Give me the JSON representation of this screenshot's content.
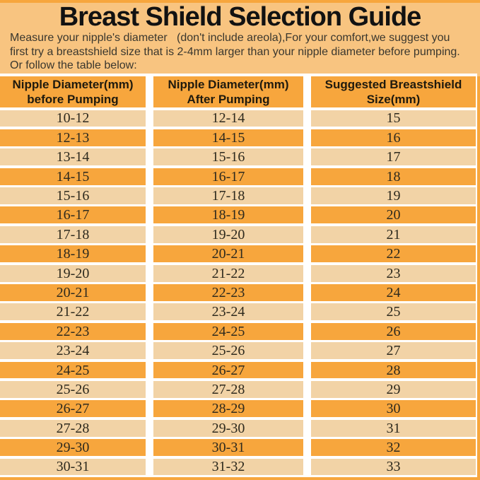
{
  "page": {
    "title": "Breast Shield Selection Guide",
    "intro_lines": [
      "Measure your nipple's diameter   (don't include areola),For your comfort,we suggest you",
      "first try a breastshield size that is 2-4mm larger than your nipple diameter before pumping.",
      "Or follow the table below:"
    ]
  },
  "colors": {
    "background": "#f8c480",
    "accent_orange": "#f7a63d",
    "light_row": "#f2d3a6",
    "gap_white": "#ffffff"
  },
  "table": {
    "headers": [
      {
        "line1": "Nipple Diameter(mm)",
        "line2": "before Pumping"
      },
      {
        "line1": "Nipple Diameter(mm)",
        "line2": "After Pumping"
      },
      {
        "line1": "Suggested Breastshield",
        "line2": "Size(mm)"
      }
    ],
    "rows": [
      {
        "before": "10-12",
        "after": "12-14",
        "size": "15"
      },
      {
        "before": "12-13",
        "after": "14-15",
        "size": "16"
      },
      {
        "before": "13-14",
        "after": "15-16",
        "size": "17"
      },
      {
        "before": "14-15",
        "after": "16-17",
        "size": "18"
      },
      {
        "before": "15-16",
        "after": "17-18",
        "size": "19"
      },
      {
        "before": "16-17",
        "after": "18-19",
        "size": "20"
      },
      {
        "before": "17-18",
        "after": "19-20",
        "size": "21"
      },
      {
        "before": "18-19",
        "after": "20-21",
        "size": "22"
      },
      {
        "before": "19-20",
        "after": "21-22",
        "size": "23"
      },
      {
        "before": "20-21",
        "after": "22-23",
        "size": "24"
      },
      {
        "before": "21-22",
        "after": "23-24",
        "size": "25"
      },
      {
        "before": "22-23",
        "after": "24-25",
        "size": "26"
      },
      {
        "before": "23-24",
        "after": "25-26",
        "size": "27"
      },
      {
        "before": "24-25",
        "after": "26-27",
        "size": "28"
      },
      {
        "before": "25-26",
        "after": "27-28",
        "size": "29"
      },
      {
        "before": "26-27",
        "after": "28-29",
        "size": "30"
      },
      {
        "before": "27-28",
        "after": "29-30",
        "size": "31"
      },
      {
        "before": "29-30",
        "after": "30-31",
        "size": "32"
      },
      {
        "before": "30-31",
        "after": "31-32",
        "size": "33"
      }
    ]
  }
}
